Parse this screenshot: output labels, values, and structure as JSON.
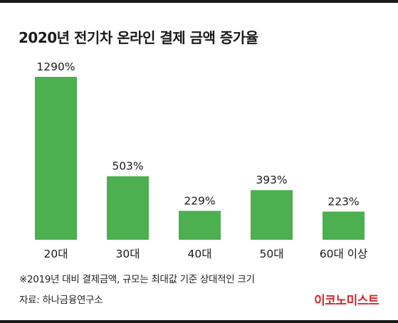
{
  "title": "2020년 전기차 온라인 결제 금액 증가율",
  "footnote": "※2019년 대비 결제금액, 규모는 최대값 기준 상대적인 크기",
  "source": "자료: 하나금융연구소",
  "brand": "이코노미스트",
  "colors": {
    "bar": "#4caf50",
    "rule": "#1a1a1a",
    "brand": "#d5262c",
    "text": "#1a1a1a"
  },
  "chart_data": {
    "type": "bar",
    "title": "2020년 전기차 온라인 결제 금액 증가율",
    "categories": [
      "20대",
      "30대",
      "40대",
      "50대",
      "60대 이상"
    ],
    "values": [
      1290,
      503,
      229,
      393,
      223
    ],
    "value_labels": [
      "1290%",
      "503%",
      "229%",
      "393%",
      "223%"
    ],
    "unit": "%",
    "xlabel": "",
    "ylabel": "",
    "grid": false,
    "legend": "none"
  }
}
